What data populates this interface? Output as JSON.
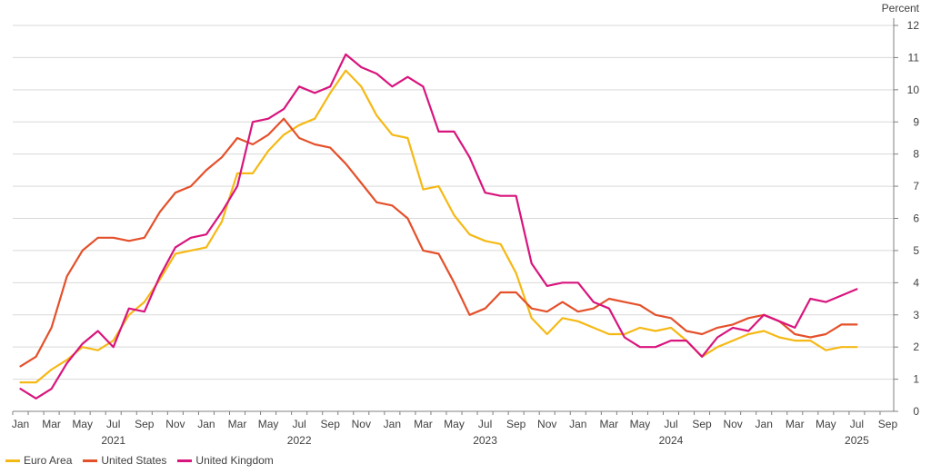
{
  "chart_data": {
    "type": "line",
    "unit_label": "Percent",
    "ylim": [
      0,
      12
    ],
    "y_ticks": [
      "0",
      "1",
      "2",
      "3",
      "4",
      "5",
      "6",
      "7",
      "8",
      "9",
      "10",
      "11",
      "12"
    ],
    "grid": true,
    "legend_position": "bottom-left",
    "x_tick_labels": [
      "Jan",
      "Mar",
      "May",
      "Jul",
      "Sep",
      "Nov",
      "Jan",
      "Mar",
      "May",
      "Jul",
      "Sep",
      "Nov",
      "Jan",
      "Mar",
      "May",
      "Jul",
      "Sep",
      "Nov",
      "Jan",
      "Mar",
      "May",
      "Jul",
      "Sep",
      "Nov",
      "Jan",
      "Mar",
      "May",
      "Jul",
      "Sep"
    ],
    "year_labels": [
      "2021",
      "2022",
      "2023",
      "2024",
      "2025"
    ],
    "x": [
      "2021-01",
      "2021-02",
      "2021-03",
      "2021-04",
      "2021-05",
      "2021-06",
      "2021-07",
      "2021-08",
      "2021-09",
      "2021-10",
      "2021-11",
      "2021-12",
      "2022-01",
      "2022-02",
      "2022-03",
      "2022-04",
      "2022-05",
      "2022-06",
      "2022-07",
      "2022-08",
      "2022-09",
      "2022-10",
      "2022-11",
      "2022-12",
      "2023-01",
      "2023-02",
      "2023-03",
      "2023-04",
      "2023-05",
      "2023-06",
      "2023-07",
      "2023-08",
      "2023-09",
      "2023-10",
      "2023-11",
      "2023-12",
      "2024-01",
      "2024-02",
      "2024-03",
      "2024-04",
      "2024-05",
      "2024-06",
      "2024-07",
      "2024-08",
      "2024-09",
      "2024-10",
      "2024-11",
      "2024-12",
      "2025-01",
      "2025-02",
      "2025-03",
      "2025-04",
      "2025-05",
      "2025-06",
      "2025-07"
    ],
    "series": [
      {
        "name": "Euro Area",
        "color": "#f5b915",
        "values": [
          0.9,
          0.9,
          1.3,
          1.6,
          2.0,
          1.9,
          2.2,
          3.0,
          3.4,
          4.1,
          4.9,
          5.0,
          5.1,
          5.9,
          7.4,
          7.4,
          8.1,
          8.6,
          8.9,
          9.1,
          9.9,
          10.6,
          10.1,
          9.2,
          8.6,
          8.5,
          6.9,
          7.0,
          6.1,
          5.5,
          5.3,
          5.2,
          4.3,
          2.9,
          2.4,
          2.9,
          2.8,
          2.6,
          2.4,
          2.4,
          2.6,
          2.5,
          2.6,
          2.2,
          1.7,
          2.0,
          2.2,
          2.4,
          2.5,
          2.3,
          2.2,
          2.2,
          1.9,
          2.0,
          2.0
        ]
      },
      {
        "name": "United States",
        "color": "#e4502a",
        "values": [
          1.4,
          1.7,
          2.6,
          4.2,
          5.0,
          5.4,
          5.4,
          5.3,
          5.4,
          6.2,
          6.8,
          7.0,
          7.5,
          7.9,
          8.5,
          8.3,
          8.6,
          9.1,
          8.5,
          8.3,
          8.2,
          7.7,
          7.1,
          6.5,
          6.4,
          6.0,
          5.0,
          4.9,
          4.0,
          3.0,
          3.2,
          3.7,
          3.7,
          3.2,
          3.1,
          3.4,
          3.1,
          3.2,
          3.5,
          3.4,
          3.3,
          3.0,
          2.9,
          2.5,
          2.4,
          2.6,
          2.7,
          2.9,
          3.0,
          2.8,
          2.4,
          2.3,
          2.4,
          2.7,
          2.7
        ]
      },
      {
        "name": "United Kingdom",
        "color": "#d8157d",
        "values": [
          0.7,
          0.4,
          0.7,
          1.5,
          2.1,
          2.5,
          2.0,
          3.2,
          3.1,
          4.2,
          5.1,
          5.4,
          5.5,
          6.2,
          7.0,
          9.0,
          9.1,
          9.4,
          10.1,
          9.9,
          10.1,
          11.1,
          10.7,
          10.5,
          10.1,
          10.4,
          10.1,
          8.7,
          8.7,
          7.9,
          6.8,
          6.7,
          6.7,
          4.6,
          3.9,
          4.0,
          4.0,
          3.4,
          3.2,
          2.3,
          2.0,
          2.0,
          2.2,
          2.2,
          1.7,
          2.3,
          2.6,
          2.5,
          3.0,
          2.8,
          2.6,
          3.5,
          3.4,
          3.6,
          3.8
        ]
      }
    ]
  }
}
